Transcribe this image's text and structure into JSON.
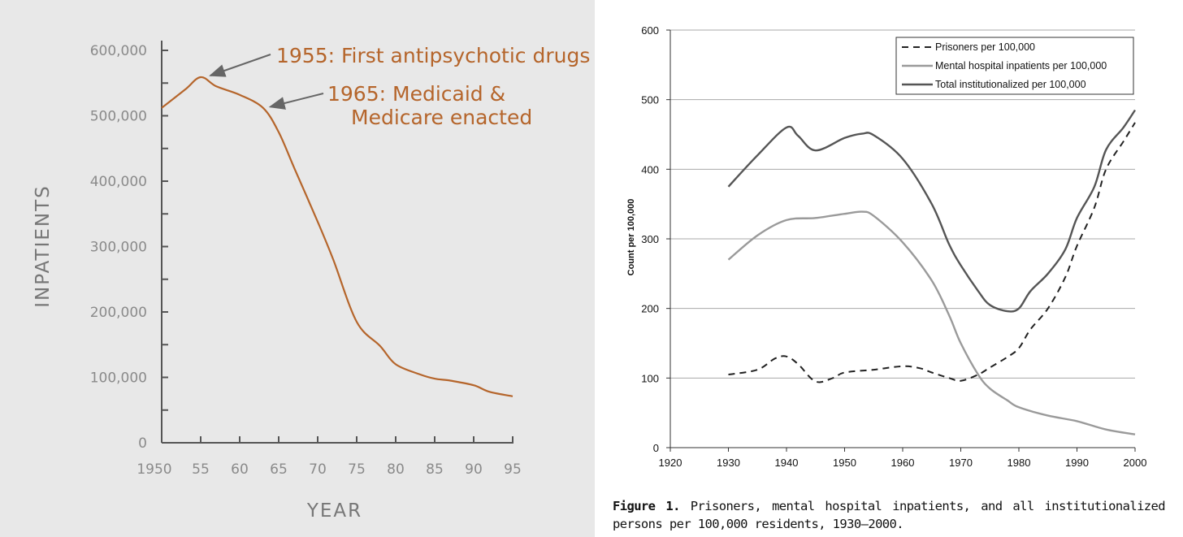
{
  "chart_data": [
    {
      "type": "line",
      "title": "",
      "xlabel": "YEAR",
      "ylabel": "INPATIENTS",
      "xlim": [
        1950,
        1995
      ],
      "ylim": [
        0,
        600000
      ],
      "x_ticks": [
        "1950",
        "55",
        "60",
        "65",
        "70",
        "75",
        "80",
        "85",
        "90",
        "95"
      ],
      "y_ticks": [
        "0",
        "100,000",
        "200,000",
        "300,000",
        "400,000",
        "500,000",
        "600,000"
      ],
      "line_color": "#b5652b",
      "series": [
        {
          "x": [
            1950,
            1953,
            1955,
            1957,
            1960,
            1963,
            1965,
            1967,
            1970,
            1972,
            1975,
            1978,
            1980,
            1983,
            1985,
            1987,
            1990,
            1992,
            1995
          ],
          "y": [
            512000,
            540000,
            559000,
            545000,
            532000,
            512000,
            475000,
            420000,
            338000,
            280000,
            185000,
            148000,
            120000,
            105000,
            98000,
            95000,
            88000,
            78000,
            71000
          ]
        }
      ],
      "annotations": [
        {
          "text": "1955: First antipsychotic drugs",
          "x": 1955,
          "y": 559000
        },
        {
          "text": "1965: Medicaid &",
          "text2": "Medicare enacted",
          "x": 1963.5,
          "y": 510000
        }
      ]
    },
    {
      "type": "line",
      "title": "",
      "xlabel": "",
      "ylabel": "Count per 100,000",
      "xlim": [
        1920,
        2000
      ],
      "ylim": [
        0,
        600
      ],
      "x_ticks": [
        1920,
        1930,
        1940,
        1950,
        1960,
        1970,
        1980,
        1990,
        2000
      ],
      "y_ticks": [
        0,
        100,
        200,
        300,
        400,
        500,
        600
      ],
      "grid": true,
      "legend_position": "top-right",
      "series": [
        {
          "name": "Prisoners per 100,000",
          "style": "dashed",
          "color": "#222222",
          "x": [
            1930,
            1935,
            1938,
            1940,
            1942,
            1945,
            1948,
            1950,
            1955,
            1960,
            1963,
            1965,
            1968,
            1970,
            1973,
            1975,
            1978,
            1980,
            1982,
            1985,
            1988,
            1990,
            1993,
            1995,
            1998,
            2000
          ],
          "y": [
            105,
            112,
            128,
            131,
            120,
            95,
            100,
            108,
            112,
            117,
            114,
            108,
            100,
            96,
            105,
            115,
            130,
            143,
            170,
            200,
            245,
            290,
            345,
            400,
            440,
            467
          ]
        },
        {
          "name": "Mental hospital inpatients per 100,000",
          "style": "solid",
          "color": "#9a9a9a",
          "x": [
            1930,
            1935,
            1940,
            1945,
            1950,
            1953,
            1955,
            1960,
            1965,
            1968,
            1970,
            1973,
            1975,
            1978,
            1980,
            1985,
            1990,
            1995,
            2000
          ],
          "y": [
            270,
            305,
            327,
            330,
            336,
            339,
            333,
            295,
            240,
            190,
            150,
            105,
            85,
            68,
            58,
            46,
            38,
            26,
            19
          ]
        },
        {
          "name": "Total institutionalized per 100,000",
          "style": "solid",
          "color": "#555555",
          "x": [
            1930,
            1935,
            1940,
            1942,
            1945,
            1950,
            1953,
            1955,
            1960,
            1965,
            1968,
            1970,
            1973,
            1975,
            1978,
            1980,
            1982,
            1985,
            1988,
            1990,
            1993,
            1995,
            1998,
            2000
          ],
          "y": [
            375,
            420,
            460,
            448,
            427,
            445,
            451,
            449,
            415,
            350,
            292,
            262,
            225,
            205,
            196,
            200,
            225,
            250,
            285,
            330,
            375,
            428,
            460,
            485
          ]
        }
      ]
    }
  ],
  "caption": {
    "label": "Figure 1.",
    "text": "Prisoners, mental hospital inpatients, and all institutionalized persons per 100,000 residents, 1930–2000."
  }
}
